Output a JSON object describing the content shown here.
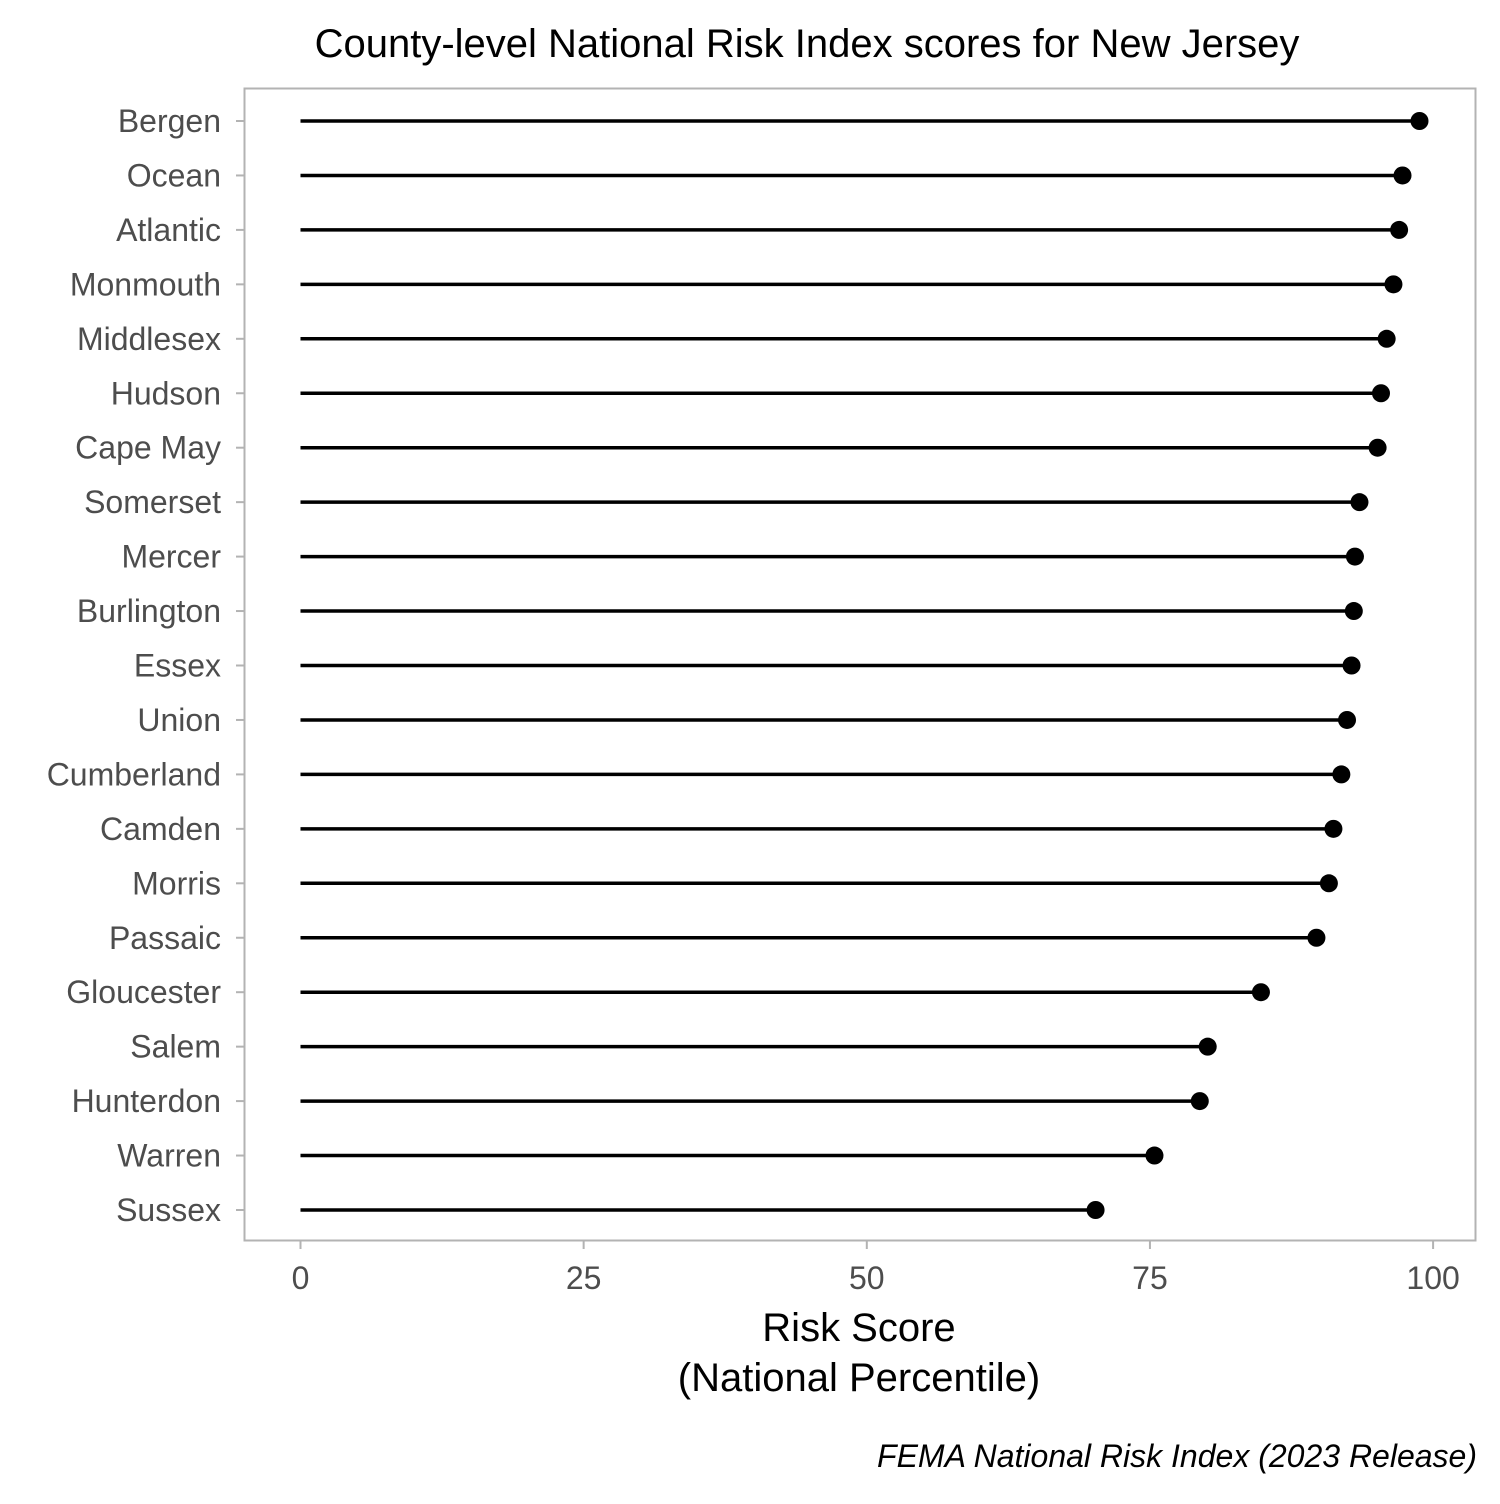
{
  "chart_data": {
    "type": "lollipop",
    "title": "County-level National Risk Index scores for New Jersey",
    "xlabel_lines": [
      "Risk Score",
      "(National Percentile)"
    ],
    "ylabel": "",
    "caption": "FEMA National Risk Index (2023 Release)",
    "xlim": [
      -4.9,
      103.7
    ],
    "xticks": [
      0,
      25,
      50,
      75,
      100
    ],
    "xtick_labels": [
      "0",
      "25",
      "50",
      "75",
      "100"
    ],
    "grid": false,
    "categories": [
      "Bergen",
      "Ocean",
      "Atlantic",
      "Monmouth",
      "Middlesex",
      "Hudson",
      "Cape May",
      "Somerset",
      "Mercer",
      "Burlington",
      "Essex",
      "Union",
      "Cumberland",
      "Camden",
      "Morris",
      "Passaic",
      "Gloucester",
      "Salem",
      "Hunterdon",
      "Warren",
      "Sussex"
    ],
    "values": [
      98.8,
      97.3,
      97.0,
      96.5,
      95.9,
      95.4,
      95.1,
      93.5,
      93.1,
      93.0,
      92.8,
      92.4,
      91.9,
      91.2,
      90.8,
      89.7,
      84.8,
      80.1,
      79.4,
      75.4,
      70.2
    ],
    "colors": {
      "line": "#000000",
      "point": "#000000",
      "panel_border": "#b3b3b3",
      "axis_text": "#4d4d4d"
    }
  }
}
